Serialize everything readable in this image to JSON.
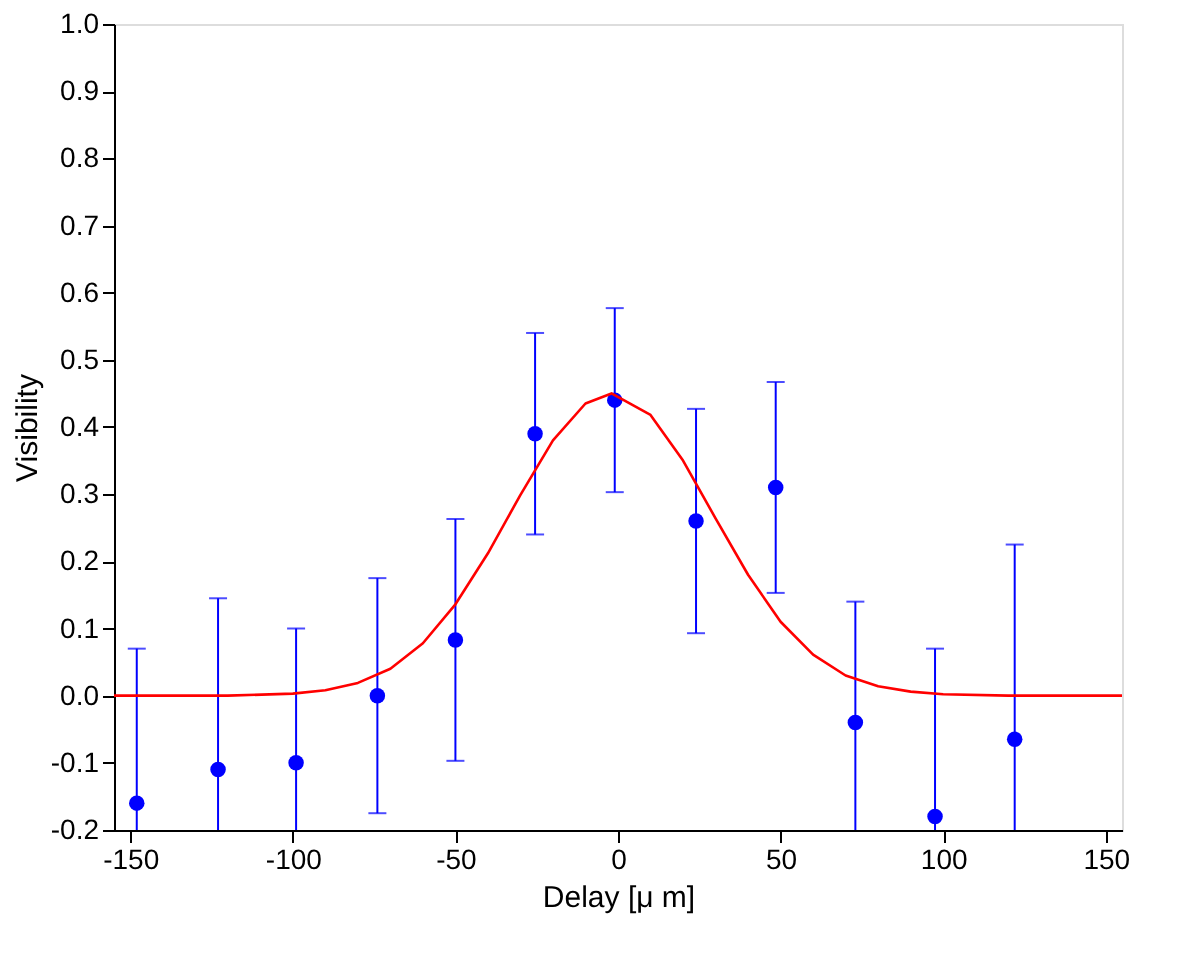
{
  "chart_data": {
    "type": "scatter",
    "xlabel": "Delay [μ m]",
    "ylabel": "Visibility",
    "xlim": [
      -155,
      155
    ],
    "ylim": [
      -0.2,
      1.0
    ],
    "xticks": [
      {
        "value": -150,
        "label": "-150"
      },
      {
        "value": -100,
        "label": "-100"
      },
      {
        "value": -50,
        "label": "-50"
      },
      0,
      50,
      100,
      150
    ],
    "yticks": [
      {
        "value": -0.2,
        "label": "-0.2"
      },
      {
        "value": -0.1,
        "label": "-0.1"
      },
      {
        "value": 0,
        "label": "0.0"
      },
      0.1,
      0.2,
      0.3,
      0.4,
      0.5,
      0.6,
      0.7,
      0.8,
      0.9,
      {
        "value": 1,
        "label": "1.0"
      }
    ],
    "grid": false,
    "legend": false,
    "marker": "circle",
    "series": [
      {
        "color": "#0000ff",
        "x": [
          -148,
          -123,
          -99,
          -74,
          -50,
          -25.5,
          -1,
          24,
          48.5,
          73,
          97.5,
          122
        ],
        "values": [
          -0.16,
          -0.11,
          -0.1,
          0.0,
          0.083,
          0.39,
          0.44,
          0.26,
          0.31,
          -0.04,
          -0.18,
          -0.065
        ],
        "errors": [
          [
            -0.2,
            0.07
          ],
          [
            -0.2,
            0.145
          ],
          [
            -0.2,
            0.1
          ],
          0.175,
          0.18,
          0.15,
          0.137,
          0.167,
          0.157,
          [
            -0.2,
            0.14
          ],
          [
            -0.2,
            0.07
          ],
          [
            -0.2,
            0.225
          ]
        ]
      },
      {
        "type": "line",
        "color": "#ff0000",
        "line_style": "solid",
        "marker": "none",
        "x": [
          -155,
          -120,
          -100,
          -90,
          -80,
          -70,
          -60,
          -50,
          -40,
          -30,
          -20,
          -10,
          -2,
          10,
          20,
          30,
          40,
          50,
          60,
          70,
          80,
          90,
          100,
          120,
          155
        ],
        "values": [
          0,
          0,
          0.003,
          0.008,
          0.019,
          0.04,
          0.078,
          0.136,
          0.212,
          0.299,
          0.38,
          0.435,
          0.45,
          0.418,
          0.35,
          0.264,
          0.18,
          0.11,
          0.061,
          0.03,
          0.014,
          0.006,
          0.002,
          0,
          0
        ]
      }
    ]
  }
}
